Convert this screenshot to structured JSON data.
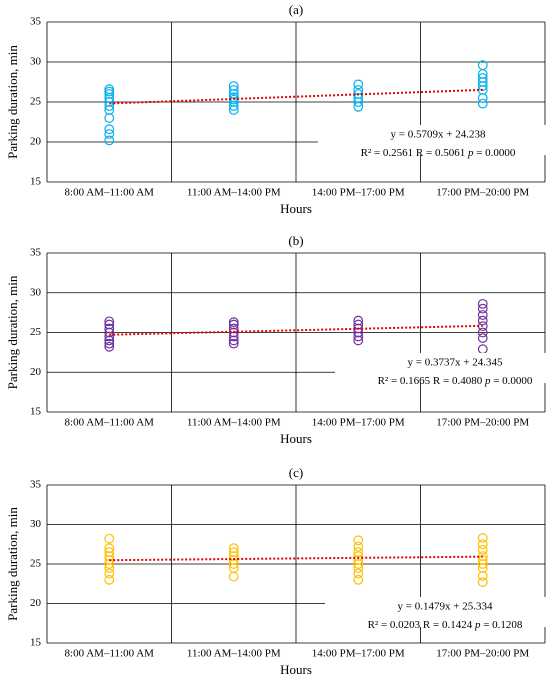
{
  "chart_data": [
    {
      "type": "scatter",
      "title": "(a)",
      "x_label": "Hours",
      "y_label": "Parking duration, min",
      "categories": [
        "8:00 AM–11:00 AM",
        "11:00 AM–14:00 PM",
        "14:00 PM–17:00 PM",
        "17:00 PM–20:00 PM"
      ],
      "color": "#00b0f0",
      "trend_color": "#e00000",
      "points": [
        [
          20.2,
          21,
          21.6,
          23,
          24,
          24.5,
          25,
          25.5,
          26,
          26.3,
          26.6
        ],
        [
          24,
          24.5,
          25,
          25.3,
          25.6,
          26,
          26.5,
          27
        ],
        [
          24.4,
          25,
          25.5,
          26,
          26.5,
          27.2
        ],
        [
          24.8,
          25.5,
          26.5,
          27,
          27.5,
          28,
          28.5,
          29.6
        ]
      ],
      "trend_values": [
        24.81,
        26.52
      ],
      "annotation": [
        "y = 0.5709x + 24.238",
        "R² = 0.2561 R = 0.5061 ",
        "p",
        " = 0.0000"
      ],
      "ylim": [
        15,
        35
      ],
      "yticks": [
        15,
        20,
        25,
        30,
        35
      ],
      "grid": true
    },
    {
      "type": "scatter",
      "title": "(b)",
      "x_label": "Hours",
      "y_label": "Parking duration, min",
      "categories": [
        "8:00 AM–11:00 AM",
        "11:00 AM–14:00 PM",
        "14:00 PM–17:00 PM",
        "17:00 PM–20:00 PM"
      ],
      "color": "#7030a0",
      "trend_color": "#e00000",
      "points": [
        [
          23.2,
          23.6,
          24,
          24.5,
          25,
          25.5,
          26,
          26.4
        ],
        [
          23.6,
          24,
          24.5,
          25,
          25.5,
          26,
          26.3
        ],
        [
          24,
          24.5,
          25,
          25.5,
          26,
          26.5
        ],
        [
          22.9,
          24.3,
          25,
          25.8,
          26.5,
          27.2,
          28,
          28.6
        ]
      ],
      "trend_values": [
        24.72,
        25.84
      ],
      "annotation": [
        "y = 0.3737x + 24.345",
        "R² = 0.1665 R = 0.4080 ",
        "p",
        " = 0.0000"
      ],
      "ylim": [
        15,
        35
      ],
      "yticks": [
        15,
        20,
        25,
        30,
        35
      ],
      "grid": true
    },
    {
      "type": "scatter",
      "title": "(c)",
      "x_label": "Hours",
      "y_label": "Parking duration, min",
      "categories": [
        "8:00 AM–11:00 AM",
        "11:00 AM–14:00 PM",
        "14:00 PM–17:00 PM",
        "17:00 PM–20:00 PM"
      ],
      "color": "#ffc000",
      "trend_color": "#e00000",
      "points": [
        [
          23,
          23.8,
          24.5,
          25,
          25.5,
          26,
          26.5,
          27,
          28.2
        ],
        [
          23.4,
          24.5,
          25,
          25.5,
          26,
          26.5,
          27
        ],
        [
          23,
          23.8,
          24.5,
          25,
          25.5,
          26,
          26.5,
          27.2,
          28
        ],
        [
          22.7,
          23.5,
          24.5,
          25,
          25.5,
          26,
          26.8,
          27.5,
          28.3
        ]
      ],
      "trend_values": [
        25.48,
        25.93
      ],
      "annotation": [
        "y = 0.1479x + 25.334",
        "R² = 0.0203 R = 0.1424 ",
        "p",
        " = 0.1208"
      ],
      "ylim": [
        15,
        35
      ],
      "yticks": [
        15,
        20,
        25,
        30,
        35
      ],
      "grid": true
    }
  ]
}
